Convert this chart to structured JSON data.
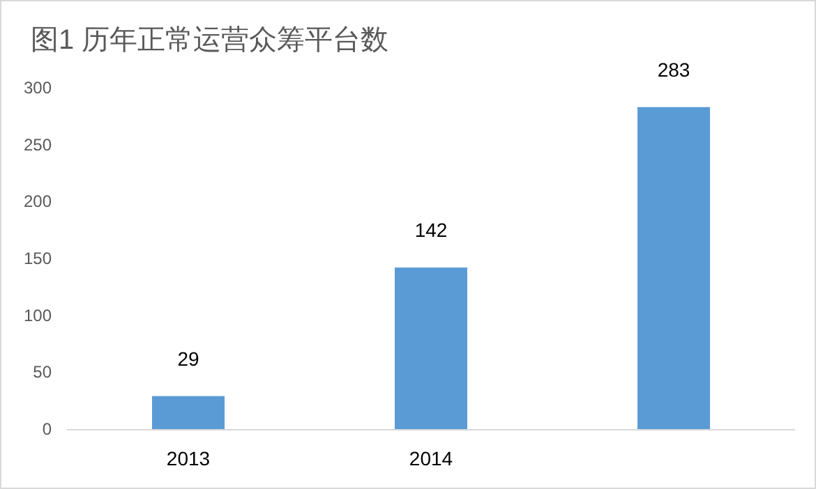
{
  "chart_data": {
    "type": "bar",
    "title": "图1 历年正常运营众筹平台数",
    "categories": [
      "2013",
      "2014",
      null
    ],
    "values": [
      29,
      142,
      283
    ],
    "color": "#5b9bd5",
    "ylim": [
      0,
      300
    ],
    "yticks": [
      0,
      50,
      100,
      150,
      200,
      250,
      300
    ],
    "data_labels": true
  }
}
